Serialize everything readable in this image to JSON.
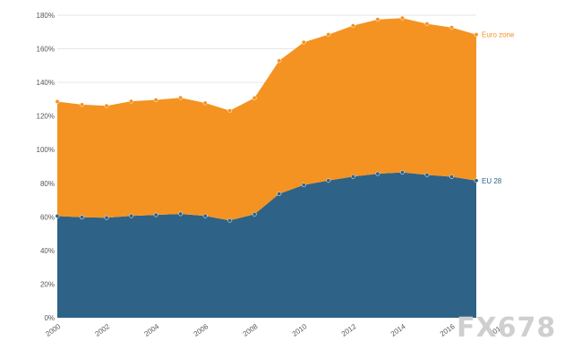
{
  "chart_data": {
    "type": "area",
    "x": [
      2000,
      2001,
      2002,
      2003,
      2004,
      2005,
      2006,
      2007,
      2008,
      2009,
      2010,
      2011,
      2012,
      2013,
      2014,
      2015,
      2016,
      2017
    ],
    "x_tick_labels": [
      "2000",
      "2002",
      "2004",
      "2006",
      "2008",
      "2010",
      "2012",
      "2014",
      "2016",
      "2018"
    ],
    "y_ticks": [
      "0%",
      "20%",
      "40%",
      "60%",
      "80%",
      "100%",
      "120%",
      "140%",
      "160%",
      "180%"
    ],
    "ylim": [
      0,
      180
    ],
    "stacked": true,
    "series": [
      {
        "name": "EU 28",
        "color": "#2e6387",
        "values": [
          60.5,
          59.8,
          59.5,
          60.6,
          61.2,
          61.8,
          60.6,
          57.9,
          61.6,
          73.7,
          79.0,
          81.6,
          84.0,
          85.7,
          86.5,
          85.0,
          83.9,
          81.6
        ]
      },
      {
        "name": "Euro zone",
        "color": "#f49322",
        "values": [
          68.1,
          67.0,
          66.6,
          68.2,
          68.4,
          69.1,
          67.2,
          65.3,
          69.2,
          79.2,
          84.9,
          86.9,
          89.8,
          91.8,
          91.8,
          89.9,
          88.8,
          86.9
        ]
      }
    ],
    "grid": true
  },
  "watermark": "FX678"
}
